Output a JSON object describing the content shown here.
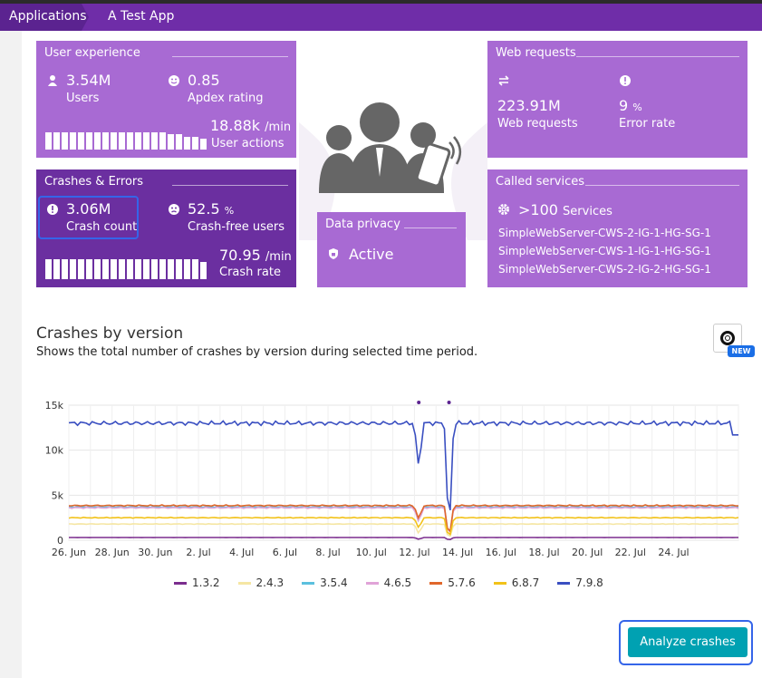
{
  "breadcrumb": {
    "root": "Applications",
    "current": "A Test App"
  },
  "user_experience": {
    "title": "User experience",
    "users_value": "3.54M",
    "users_label": "Users",
    "apdex_value": "0.85",
    "apdex_label": "Apdex rating",
    "actions_value": "18.88k",
    "actions_unit": "/min",
    "actions_label": "User actions",
    "bar_levels": [
      0.8,
      0.8,
      0.8,
      0.8,
      0.8,
      0.8,
      0.8,
      0.8,
      0.8,
      0.8,
      0.8,
      0.8,
      0.8,
      0.8,
      0.8,
      0.7,
      0.7,
      0.6,
      0.6,
      0.5
    ]
  },
  "crashes": {
    "title": "Crashes & Errors",
    "count_value": "3.06M",
    "count_label": "Crash count",
    "free_value": "52.5",
    "free_unit": "%",
    "free_label": "Crash-free users",
    "rate_value": "70.95",
    "rate_unit": "/min",
    "rate_label": "Crash rate",
    "bar_levels": [
      0.9,
      0.9,
      0.9,
      0.9,
      0.9,
      0.9,
      0.9,
      0.9,
      0.9,
      0.9,
      0.9,
      0.9,
      0.9,
      0.9,
      0.9,
      0.9,
      0.9,
      0.9,
      0.9,
      0.8
    ]
  },
  "web_requests": {
    "title": "Web requests",
    "req_value": "223.91M",
    "req_label": "Web requests",
    "err_value": "9",
    "err_unit": "%",
    "err_label": "Error rate"
  },
  "called_services": {
    "title": "Called services",
    "count_value": ">100",
    "count_label": "Services",
    "items": [
      "SimpleWebServer-CWS-2-IG-1-HG-SG-1",
      "SimpleWebServer-CWS-1-IG-1-HG-SG-1",
      "SimpleWebServer-CWS-2-IG-2-HG-SG-1"
    ]
  },
  "data_privacy": {
    "title": "Data privacy",
    "status": "Active"
  },
  "section": {
    "title": "Crashes by version",
    "subtitle": "Shows the total number of crashes by version during selected time period.",
    "new_badge": "NEW"
  },
  "chart_data": {
    "type": "line",
    "ylim": [
      0,
      15000
    ],
    "yticks": [
      "15k",
      "10k",
      "5k",
      "0"
    ],
    "ytick_values": [
      15000,
      10000,
      5000,
      0
    ],
    "xticks": [
      "26. Jun",
      "28. Jun",
      "30. Jun",
      "2. Jul",
      "4. Jul",
      "6. Jul",
      "8. Jul",
      "10. Jul",
      "12. Jul",
      "14. Jul",
      "16. Jul",
      "18. Jul",
      "20. Jul",
      "22. Jul",
      "24. Jul"
    ],
    "x_days": 31,
    "series": [
      {
        "name": "1.3.2",
        "color": "#7b2d8e",
        "base": 300,
        "dips": [
          [
            16.2,
            100
          ],
          [
            17.6,
            0
          ]
        ]
      },
      {
        "name": "2.4.3",
        "color": "#f5e6a3",
        "base": 1800,
        "dips": [
          [
            16.2,
            700
          ],
          [
            17.6,
            0
          ]
        ]
      },
      {
        "name": "3.5.4",
        "color": "#5bc0de",
        "base": 3700,
        "dips": [
          [
            16.2,
            2000
          ],
          [
            17.6,
            0
          ]
        ]
      },
      {
        "name": "4.6.5",
        "color": "#e0a3d8",
        "base": 3600,
        "dips": [
          [
            16.2,
            2000
          ],
          [
            17.6,
            0
          ]
        ]
      },
      {
        "name": "5.7.6",
        "color": "#e0662a",
        "base": 3850,
        "dips": [
          [
            16.2,
            2300
          ],
          [
            17.6,
            0
          ]
        ]
      },
      {
        "name": "6.8.7",
        "color": "#f2c21a",
        "base": 2500,
        "dips": [
          [
            16.2,
            1300
          ],
          [
            17.6,
            0
          ]
        ]
      },
      {
        "name": "7.9.8",
        "color": "#3a4fc1",
        "base": 13000,
        "dips": [
          [
            16.2,
            7900
          ],
          [
            17.6,
            0
          ]
        ]
      }
    ]
  },
  "analyze_button": {
    "label": "Analyze crashes"
  },
  "colors": {
    "brand": "#6f2da8",
    "tile_light": "#a86ad3",
    "tile_dark": "#6b2fa0",
    "accent": "#00a1b2"
  }
}
